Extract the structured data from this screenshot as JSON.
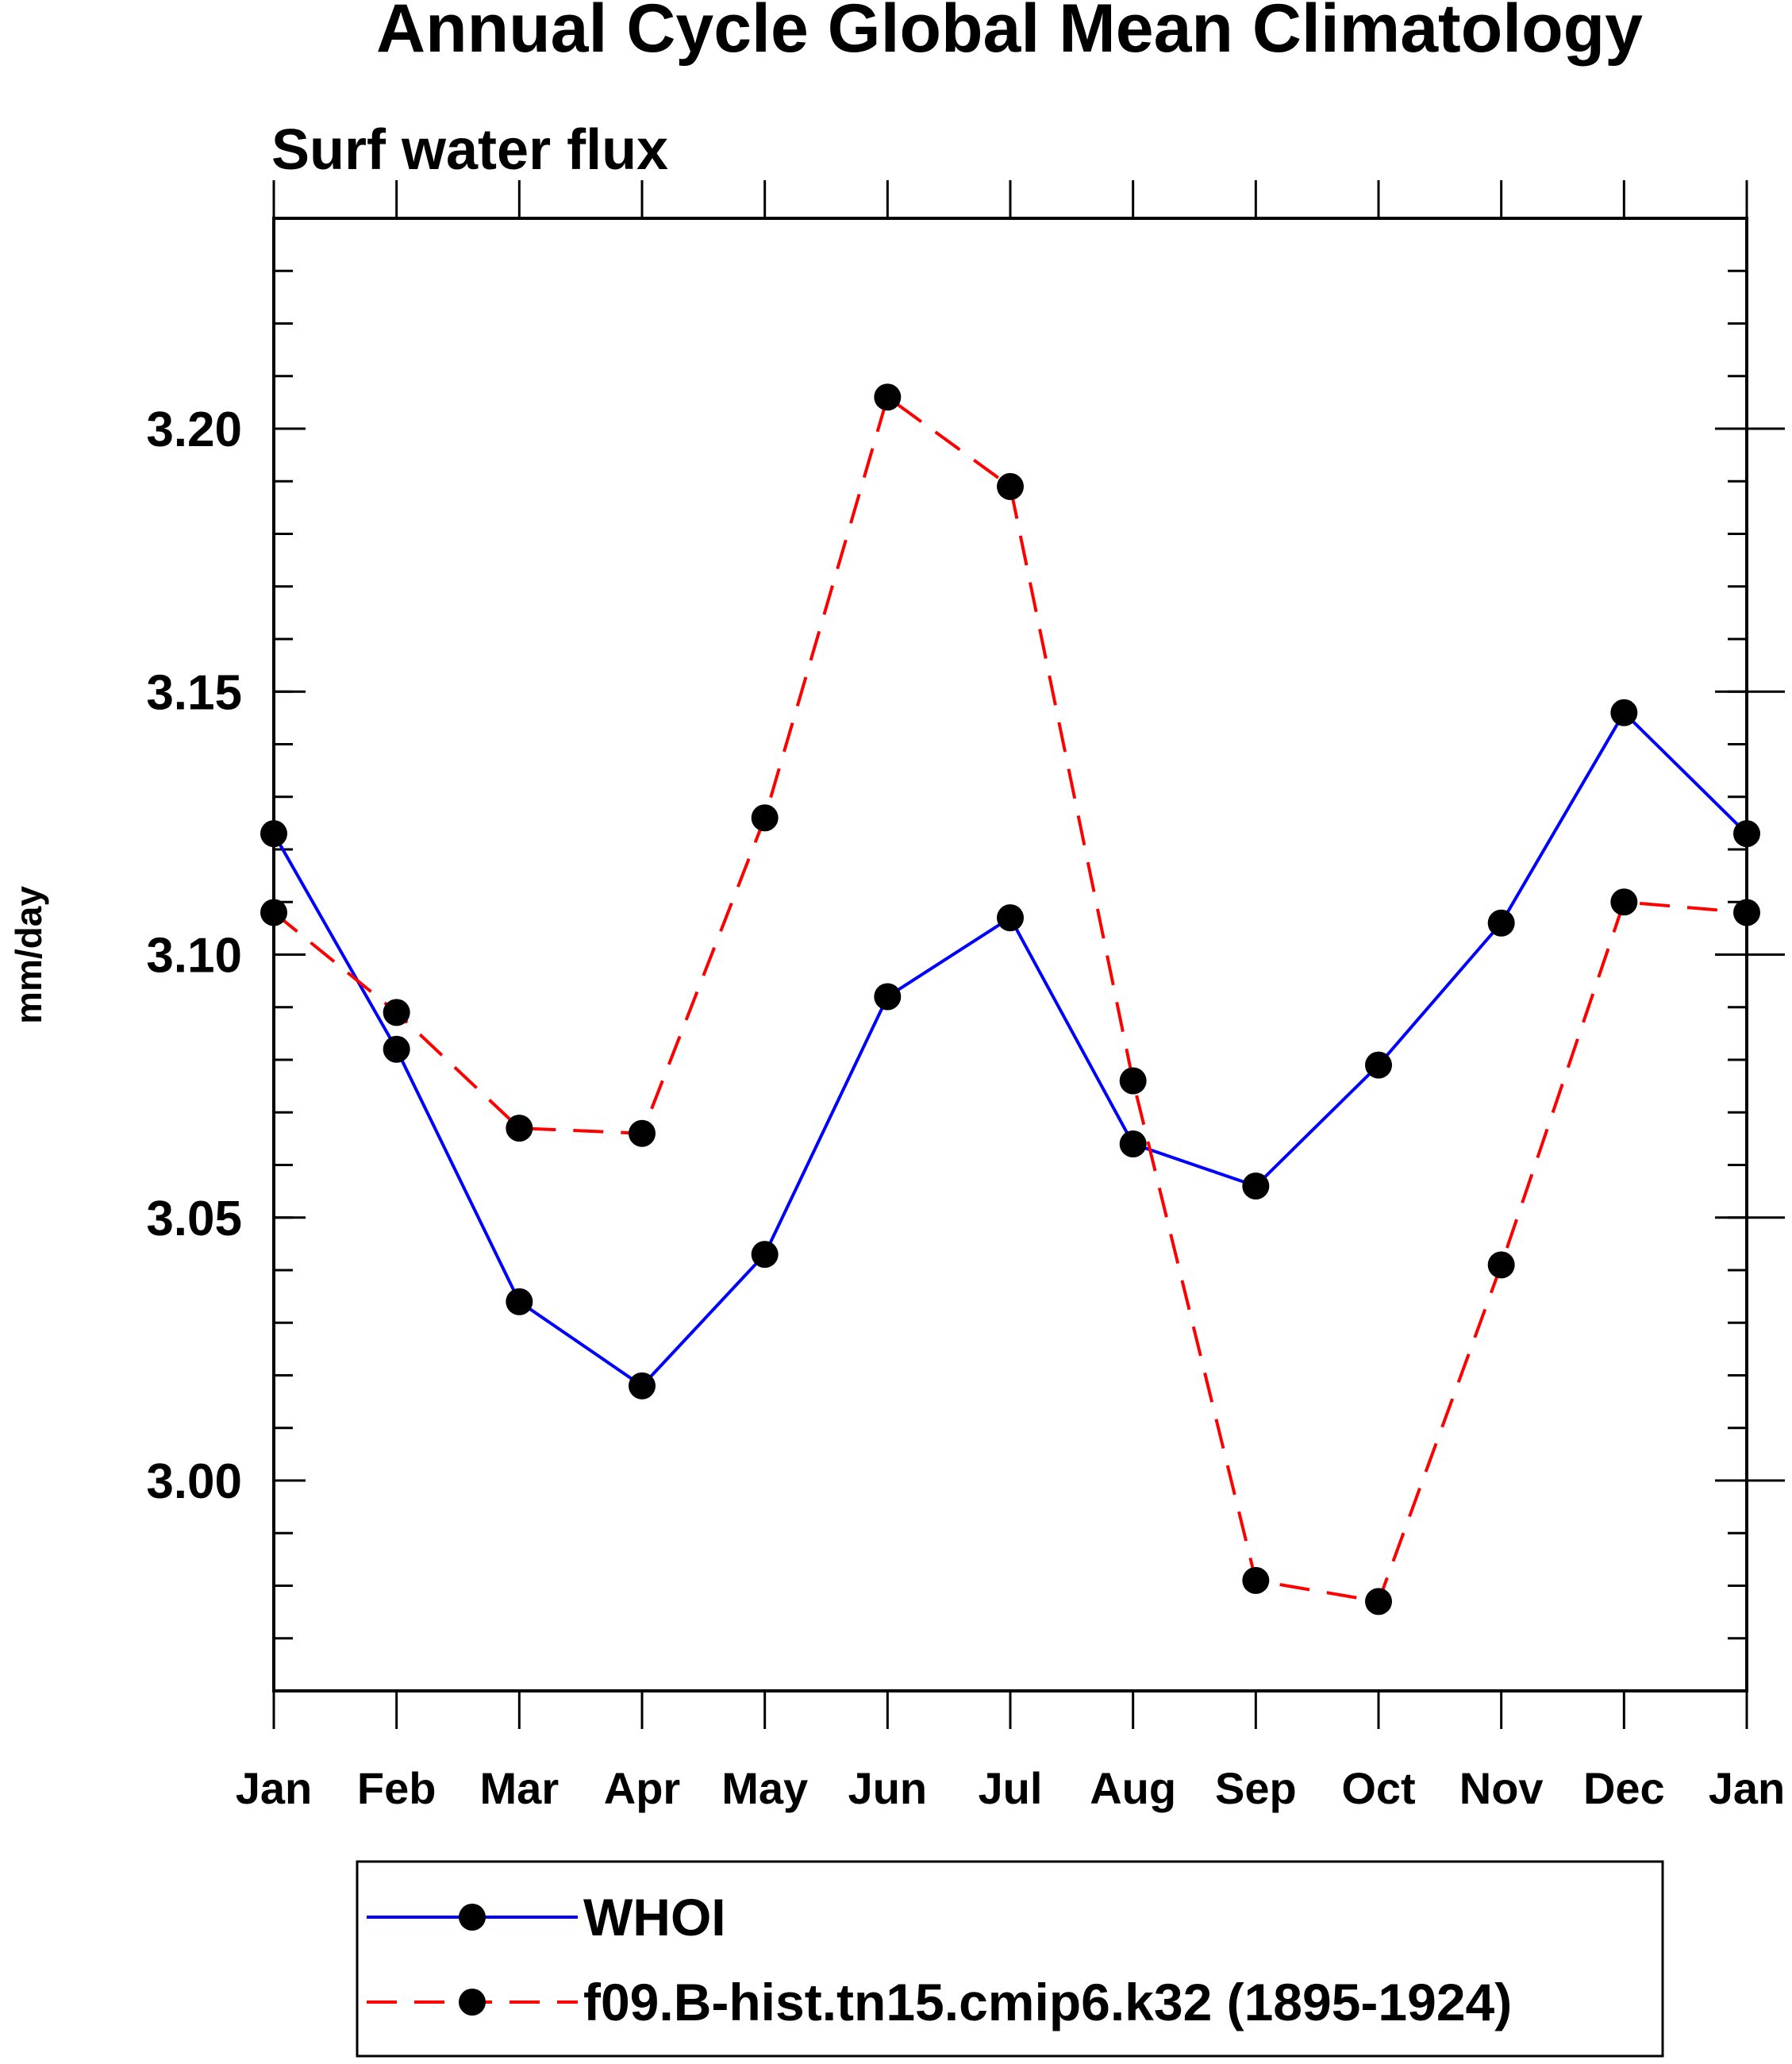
{
  "chart_data": {
    "type": "line",
    "title": "Annual Cycle Global Mean Climatology",
    "subtitle": "Surf water flux",
    "xlabel": "",
    "ylabel": "mm/day",
    "categories": [
      "Jan",
      "Feb",
      "Mar",
      "Apr",
      "May",
      "Jun",
      "Jul",
      "Aug",
      "Sep",
      "Oct",
      "Nov",
      "Dec",
      "Jan"
    ],
    "ylim": [
      2.96,
      3.24
    ],
    "yticks_labeled": [
      3.0,
      3.05,
      3.1,
      3.15,
      3.2
    ],
    "ytick_labels": [
      "3.00",
      "3.05",
      "3.10",
      "3.15",
      "3.20"
    ],
    "yminor_step": 0.01,
    "grid": false,
    "legend_position": "bottom",
    "series": [
      {
        "name": "WHOI",
        "color": "#0000ff",
        "dash": "solid",
        "marker": "filled-circle",
        "values": [
          3.123,
          3.082,
          3.034,
          3.018,
          3.043,
          3.092,
          3.107,
          3.064,
          3.056,
          3.079,
          3.106,
          3.146,
          3.123
        ]
      },
      {
        "name": "f09.B-hist.tn15.cmip6.k32 (1895-1924)",
        "color": "#ff0000",
        "dash": "dashed",
        "marker": "filled-circle",
        "values": [
          3.108,
          3.089,
          3.067,
          3.066,
          3.126,
          3.206,
          3.189,
          3.076,
          2.981,
          2.977,
          3.041,
          3.11,
          3.108
        ]
      }
    ]
  }
}
